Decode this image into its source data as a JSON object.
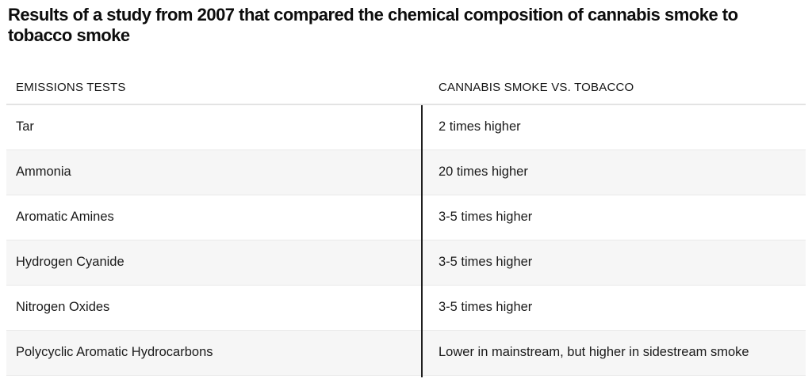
{
  "title": "Results of a study from 2007 that compared the chemical composition of cannabis smoke to tobacco smoke",
  "chart_data": {
    "type": "table",
    "title": "Results of a study from 2007 that compared the chemical composition of cannabis smoke to tobacco smoke",
    "columns": [
      "EMISSIONS TESTS",
      "CANNABIS SMOKE VS. TOBACCO"
    ],
    "rows": [
      [
        "Tar",
        "2 times higher"
      ],
      [
        "Ammonia",
        "20 times higher"
      ],
      [
        "Aromatic Amines",
        "3-5 times higher"
      ],
      [
        "Hydrogen Cyanide",
        "3-5 times higher"
      ],
      [
        "Nitrogen Oxides",
        "3-5 times higher"
      ],
      [
        "Polycyclic Aromatic Hydrocarbons",
        "Lower in mainstream, but higher in sidestream smoke"
      ]
    ]
  },
  "colors": {
    "row_alt_bg": "#f6f6f6",
    "row_separator": "#e9e9e9",
    "header_separator": "#e3e3e3",
    "column_divider": "#1f1f1f",
    "text": "#1a1a1a"
  }
}
